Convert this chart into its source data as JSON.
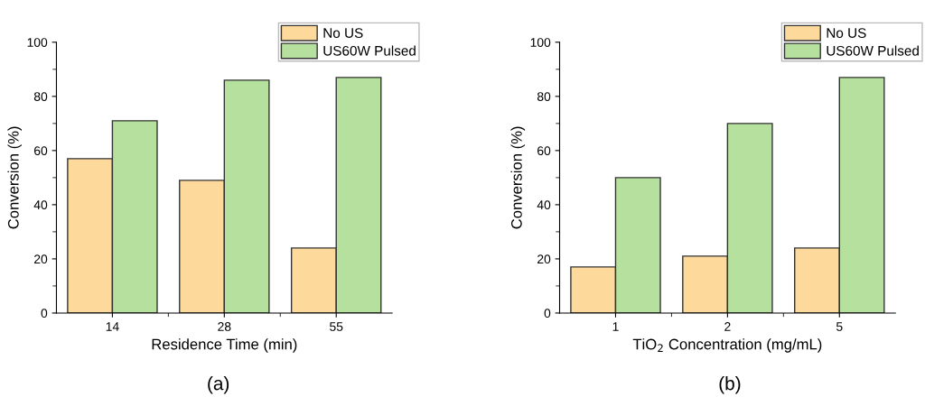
{
  "chart_data": [
    {
      "type": "bar",
      "categories": [
        "14",
        "28",
        "55"
      ],
      "xlabel": "Residence Time (min)",
      "ylabel": "Conversion (%)",
      "ylim": [
        0,
        100
      ],
      "yticks": [
        0,
        20,
        40,
        60,
        80,
        100
      ],
      "legend": "top right",
      "annotations": [
        "(a)"
      ],
      "series": [
        {
          "name": "No US",
          "color": "#fdd99b",
          "values": [
            57,
            49,
            24
          ]
        },
        {
          "name": "US60W Pulsed",
          "color": "#b5e09d",
          "values": [
            71,
            86,
            87
          ]
        }
      ]
    },
    {
      "type": "bar",
      "categories": [
        "1",
        "2",
        "5"
      ],
      "xlabel": "TiO$_{2}$ Concentration (mg/mL)",
      "ylabel": "Conversion (%)",
      "ylim": [
        0,
        100
      ],
      "yticks": [
        0,
        20,
        40,
        60,
        80,
        100
      ],
      "legend": "top right",
      "annotations": [
        "(b)"
      ],
      "series": [
        {
          "name": "No US",
          "color": "#fdd99b",
          "values": [
            17,
            21,
            24
          ]
        },
        {
          "name": "US60W Pulsed",
          "color": "#b5e09d",
          "values": [
            50,
            70,
            87
          ]
        }
      ]
    }
  ]
}
